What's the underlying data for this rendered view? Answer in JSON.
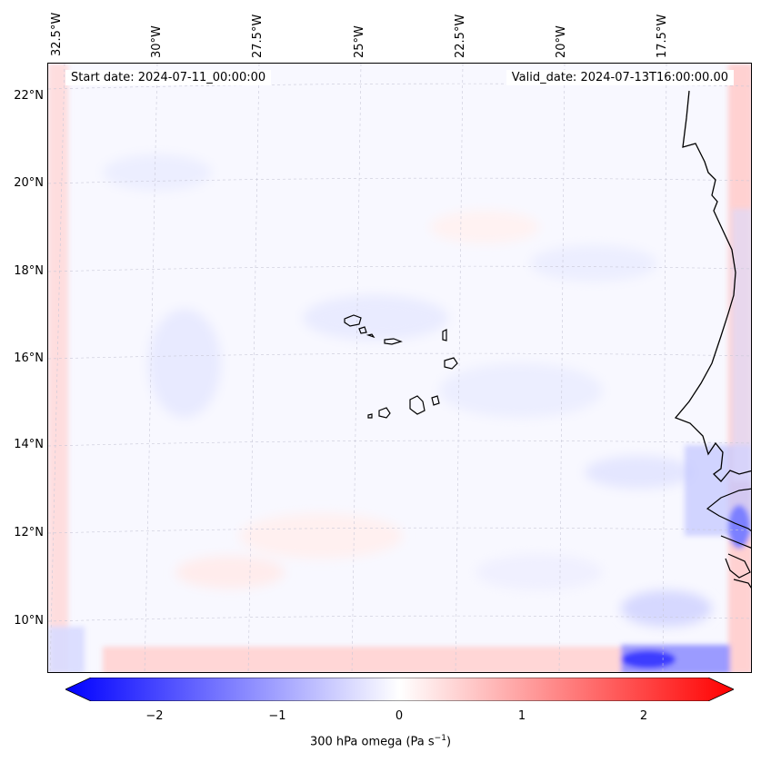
{
  "start_date": "Start date: 2024-07-11_00:00:00",
  "valid_date": "Valid_date: 2024-07-13T16:00:00.00",
  "lon_labels": [
    "32.5°W",
    "30°W",
    "27.5°W",
    "25°W",
    "22.5°W",
    "20°W",
    "17.5°W"
  ],
  "lat_labels": [
    "22°N",
    "20°N",
    "18°N",
    "16°N",
    "14°N",
    "12°N",
    "10°N"
  ],
  "colorbar": {
    "ticks": [
      "−2",
      "−1",
      "0",
      "1",
      "2"
    ],
    "tick_values": [
      -2,
      -1,
      0,
      1,
      2
    ],
    "range": [
      -2.5,
      2.5
    ],
    "label_main": "300 hPa omega (Pa s",
    "label_sup": "−1",
    "label_end": ")"
  },
  "colors": {
    "negative": "#0000ff",
    "zero": "#ffffff",
    "positive": "#ff0000",
    "coast": "#000000"
  }
}
